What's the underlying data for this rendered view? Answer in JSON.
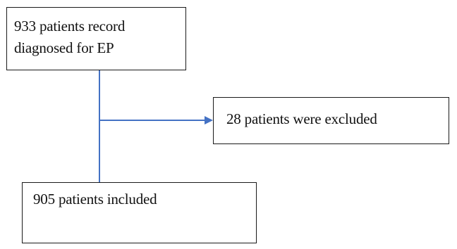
{
  "flowchart": {
    "nodes": [
      {
        "id": "screened",
        "lines": [
          "933 patients record",
          "diagnosed for EP"
        ]
      },
      {
        "id": "excluded",
        "lines": [
          "28 patients were excluded"
        ]
      },
      {
        "id": "included",
        "lines": [
          "905 patients included"
        ]
      }
    ],
    "edges": [
      {
        "from": "screened",
        "to": "included",
        "style": "line"
      },
      {
        "from": "screened",
        "to": "excluded",
        "style": "arrow"
      }
    ],
    "colors": {
      "connector": "#4472c4",
      "box_border": "#1a1a1a",
      "text": "#111111"
    }
  }
}
